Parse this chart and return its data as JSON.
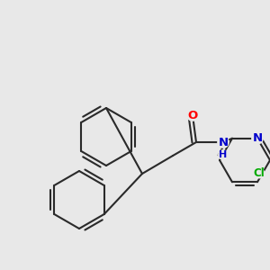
{
  "background_color": "#e8e8e8",
  "bond_color": "#2a2a2a",
  "bond_width": 1.5,
  "atom_colors": {
    "O": "#ff0000",
    "N": "#0000cc",
    "Cl": "#00aa00",
    "C": "#2a2a2a"
  },
  "font_size": 8.5,
  "figsize": [
    3.0,
    3.0
  ],
  "dpi": 100
}
